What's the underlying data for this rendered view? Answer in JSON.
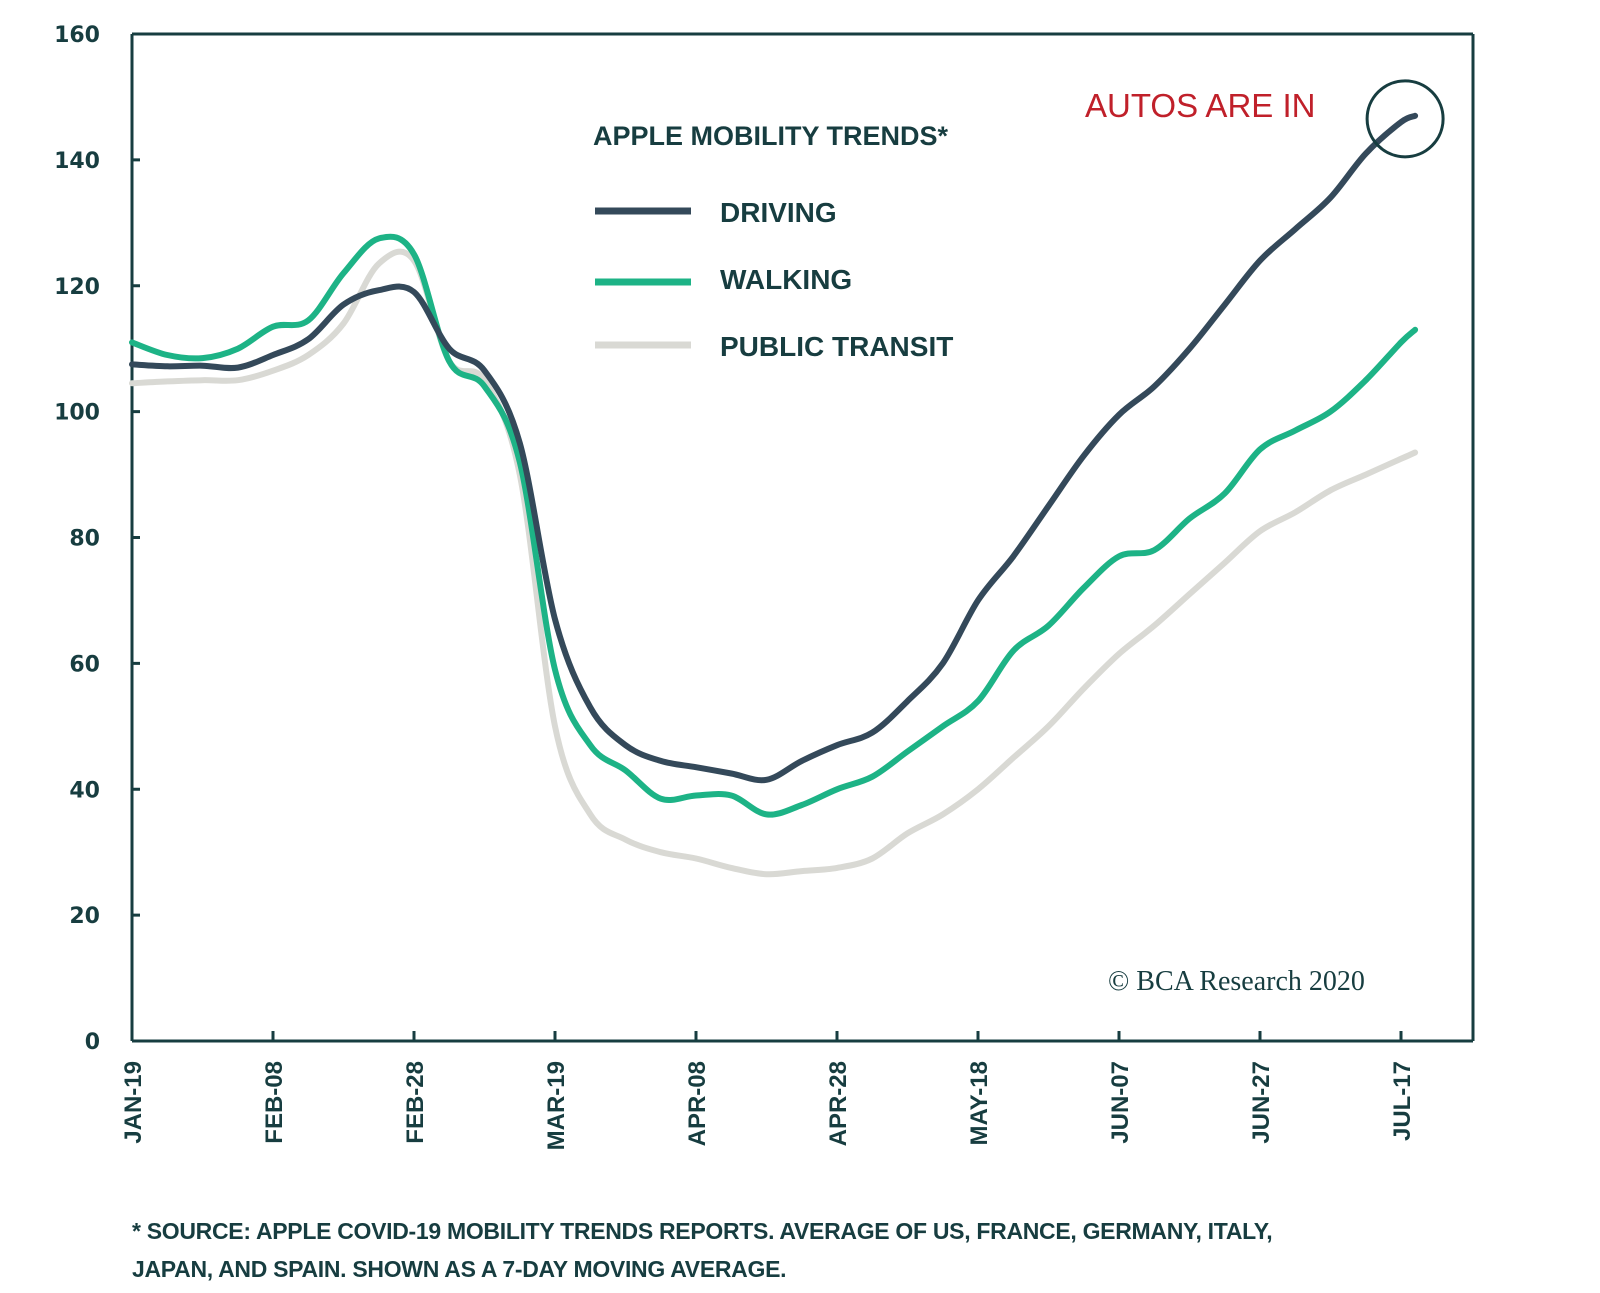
{
  "chart_data": {
    "type": "line",
    "title": "APPLE MOBILITY TRENDS*",
    "xlabel": "",
    "ylabel": "",
    "ylim": [
      0,
      160
    ],
    "yticks": [
      "0",
      "20",
      "40",
      "60",
      "80",
      "100",
      "120",
      "140",
      "160"
    ],
    "ytick_values": [
      0,
      20,
      40,
      60,
      80,
      100,
      120,
      140,
      160
    ],
    "xticks": [
      "JAN-19",
      "FEB-08",
      "FEB-28",
      "MAR-19",
      "APR-08",
      "APR-28",
      "MAY-18",
      "JUN-07",
      "JUN-27",
      "JUL-17"
    ],
    "xtick_days": [
      0,
      20,
      40,
      60,
      80,
      100,
      120,
      140,
      160,
      180
    ],
    "x_unit": "days since JAN-19 (2020)",
    "x": [
      0,
      5,
      10,
      15,
      20,
      25,
      30,
      35,
      40,
      45,
      50,
      55,
      60,
      65,
      70,
      75,
      80,
      85,
      90,
      95,
      100,
      105,
      110,
      115,
      120,
      125,
      130,
      135,
      140,
      145,
      150,
      155,
      160,
      165,
      170,
      175,
      180,
      182
    ],
    "series": [
      {
        "name": "DRIVING",
        "color": "#34495a",
        "values": [
          107.5,
          107.2,
          107.3,
          107,
          109,
          111.5,
          117,
          119.3,
          119,
          110,
          106.5,
          95,
          67,
          53,
          47,
          44.5,
          43.5,
          42.5,
          41.5,
          44.5,
          47,
          49,
          54,
          60,
          70,
          77,
          85,
          93,
          99.5,
          104,
          110,
          117,
          124,
          129,
          134,
          141,
          146,
          147
        ]
      },
      {
        "name": "WALKING",
        "color": "#1db386",
        "values": [
          111,
          109,
          108.5,
          110,
          113.5,
          114.5,
          122,
          127.5,
          125,
          108,
          104,
          92,
          59,
          47,
          43,
          38.5,
          39,
          39,
          36,
          37.5,
          40,
          42,
          46,
          50,
          54,
          62,
          66,
          72,
          77,
          78,
          83,
          87,
          94,
          97,
          100,
          105,
          111,
          113
        ]
      },
      {
        "name": "PUBLIC TRANSIT",
        "color": "#d9d9d4",
        "values": [
          104.5,
          104.8,
          105,
          105,
          106.5,
          109,
          114,
          123.5,
          124,
          108,
          105,
          90,
          50,
          36,
          32,
          30,
          29,
          27.5,
          26.5,
          27,
          27.5,
          29,
          33,
          36,
          40,
          45,
          50,
          56,
          61.5,
          66,
          71,
          76,
          81,
          84,
          87.5,
          90,
          92.5,
          93.5
        ]
      }
    ],
    "legend": {
      "placement": "top-center",
      "title": "APPLE MOBILITY TRENDS*",
      "entries": [
        "DRIVING",
        "WALKING",
        "PUBLIC TRANSIT"
      ]
    },
    "annotations": [
      {
        "text": "AUTOS ARE IN",
        "color": "#c0202a",
        "target_series": "DRIVING",
        "target_day": 182,
        "marker": "circle"
      }
    ],
    "grid": false
  },
  "copyright": "© BCA Research 2020",
  "footnote": {
    "line1": "* SOURCE: APPLE COVID-19 MOBILITY TRENDS REPORTS. AVERAGE OF US, FRANCE, GERMANY, ITALY,",
    "line2": "JAPAN, AND SPAIN. SHOWN AS A 7-DAY MOVING AVERAGE."
  },
  "colors": {
    "axis": "#173d40",
    "annotation": "#c0202a"
  }
}
